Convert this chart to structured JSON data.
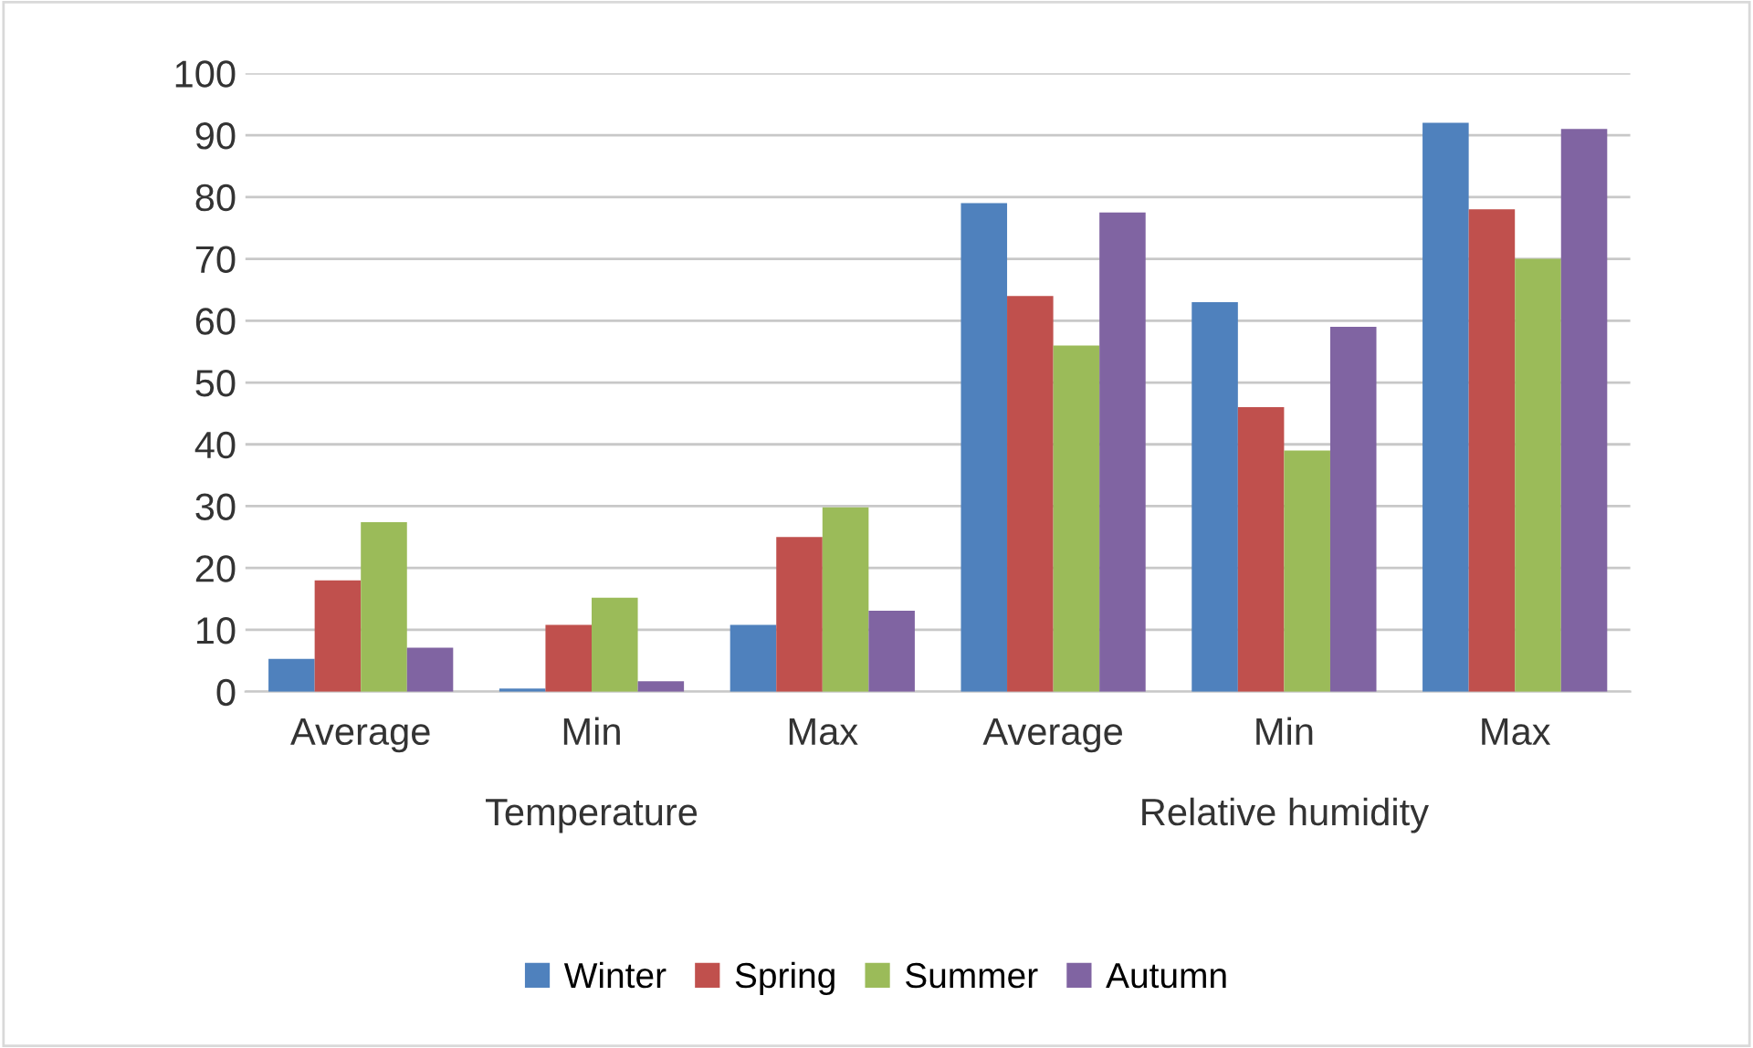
{
  "chart_data": {
    "type": "bar",
    "categories": [
      "Average",
      "Min",
      "Max",
      "Average",
      "Min",
      "Max"
    ],
    "series": [
      {
        "name": "Winter",
        "color": "#4f81bd",
        "values": [
          5.3,
          0.5,
          10.8,
          79,
          63,
          92
        ]
      },
      {
        "name": "Spring",
        "color": "#c0504d",
        "values": [
          18,
          10.8,
          25,
          64,
          46,
          78
        ]
      },
      {
        "name": "Summer",
        "color": "#9bbb59",
        "values": [
          27.4,
          15.2,
          29.8,
          56,
          39,
          70
        ]
      },
      {
        "name": "Autumn",
        "color": "#8064a2",
        "values": [
          7.1,
          1.7,
          13.1,
          77.5,
          59,
          91
        ]
      }
    ],
    "annotations": [
      "Temperature",
      "Relative humidity"
    ],
    "ylim": [
      0,
      100
    ],
    "yticks": [
      0,
      10,
      20,
      30,
      40,
      50,
      60,
      70,
      80,
      90,
      100
    ],
    "grid": "y",
    "legend": "bottom"
  }
}
